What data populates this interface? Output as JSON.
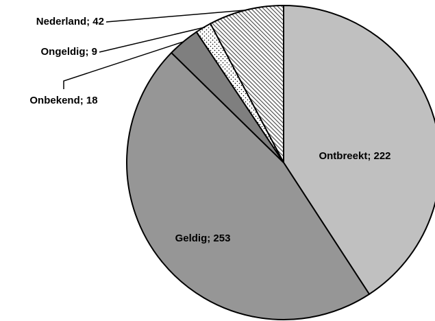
{
  "chart_data": {
    "type": "pie",
    "values": [
      222,
      253,
      18,
      9,
      42
    ],
    "value_labels": [
      "Ontbreekt; 222",
      "Geldig; 253",
      "Onbekend; 18",
      "Ongeldig; 9",
      "Nederland; 42"
    ],
    "colors": [
      "#c0c0c0",
      "#969696",
      "#7f7f7f",
      "url(#dots)",
      "url(#hatch)"
    ]
  }
}
